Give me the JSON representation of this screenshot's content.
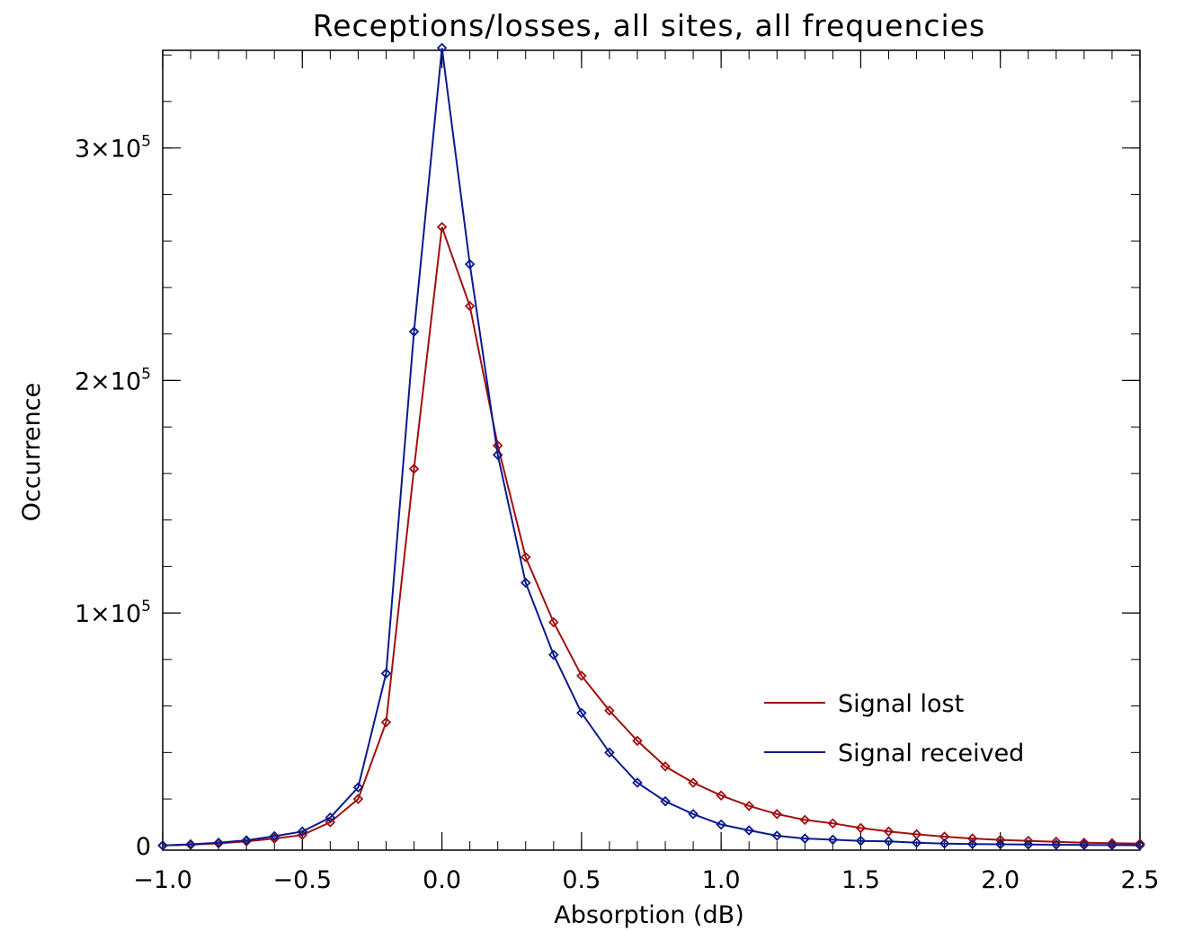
{
  "chart_data": {
    "type": "line",
    "title": "Receptions/losses, all sites, all frequencies",
    "xlabel": "Absorption (dB)",
    "ylabel": "Occurrence",
    "xlim": [
      -1.0,
      2.5
    ],
    "ylim": [
      -2000,
      342000
    ],
    "x_ticks": [
      {
        "value": -1.0,
        "label": "−1.0"
      },
      {
        "value": -0.5,
        "label": "−0.5"
      },
      {
        "value": 0.0,
        "label": "0.0"
      },
      {
        "value": 0.5,
        "label": "0.5"
      },
      {
        "value": 1.0,
        "label": "1.0"
      },
      {
        "value": 1.5,
        "label": "1.5"
      },
      {
        "value": 2.0,
        "label": "2.0"
      },
      {
        "value": 2.5,
        "label": "2.5"
      }
    ],
    "y_ticks": [
      {
        "value": 0,
        "base": "0",
        "exp": ""
      },
      {
        "value": 100000,
        "base": "1×10",
        "exp": "5"
      },
      {
        "value": 200000,
        "base": "2×10",
        "exp": "5"
      },
      {
        "value": 300000,
        "base": "3×10",
        "exp": "5"
      }
    ],
    "x_minor_step": 0.1,
    "y_minor_step": 20000,
    "grid": false,
    "legend_position": "bottom-right",
    "x": [
      -1.0,
      -0.9,
      -0.8,
      -0.7,
      -0.6,
      -0.5,
      -0.4,
      -0.3,
      -0.2,
      -0.1,
      0.0,
      0.1,
      0.2,
      0.3,
      0.4,
      0.5,
      0.6,
      0.7,
      0.8,
      0.9,
      1.0,
      1.1,
      1.2,
      1.3,
      1.4,
      1.5,
      1.6,
      1.7,
      1.8,
      1.9,
      2.0,
      2.1,
      2.2,
      2.3,
      2.4,
      2.5
    ],
    "series": [
      {
        "name": "Signal lost",
        "color": "#a01010",
        "values": [
          0,
          300,
          900,
          1800,
          3000,
          4500,
          10000,
          20000,
          53000,
          162000,
          266000,
          232000,
          172000,
          124000,
          96000,
          73000,
          58000,
          45000,
          34000,
          27000,
          21500,
          17000,
          13500,
          11000,
          9500,
          7500,
          6000,
          4800,
          3800,
          3000,
          2400,
          2000,
          1600,
          1200,
          1000,
          800
        ]
      },
      {
        "name": "Signal received",
        "color": "#0a1a8c",
        "values": [
          0,
          500,
          1200,
          2200,
          4000,
          6000,
          12000,
          25000,
          74000,
          221000,
          343000,
          250000,
          168000,
          113000,
          82000,
          57000,
          40000,
          27000,
          19000,
          13500,
          9000,
          6500,
          4200,
          3000,
          2500,
          2000,
          1800,
          1200,
          800,
          600,
          500,
          400,
          300,
          200,
          150,
          100
        ]
      }
    ]
  }
}
